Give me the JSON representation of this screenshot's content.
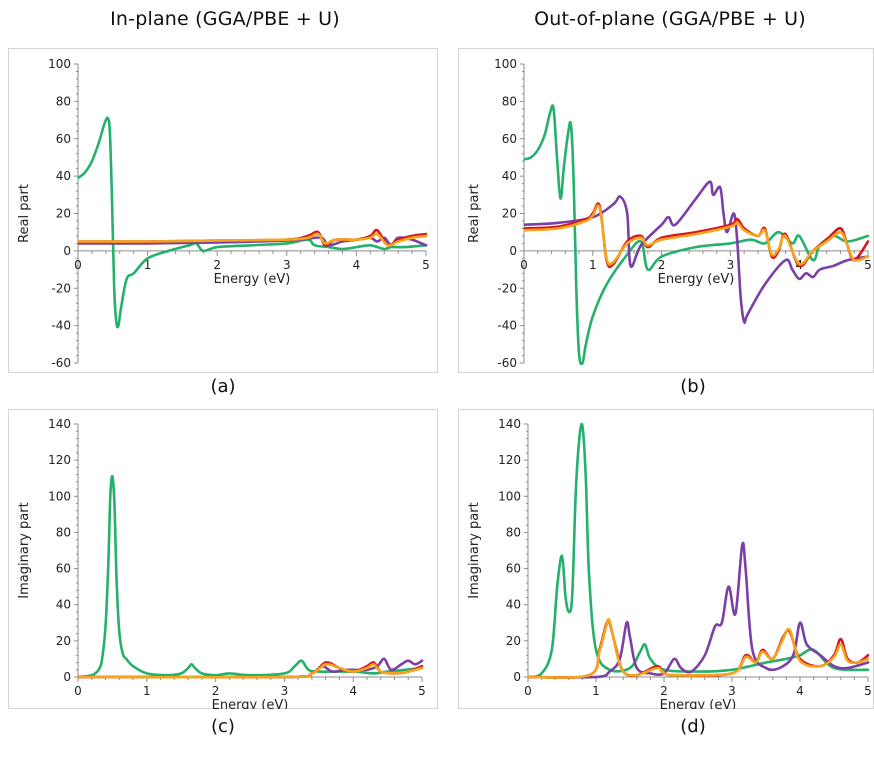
{
  "titles": {
    "left": "In-plane (GGA/PBE + U)",
    "right": "Out-of-plane (GGA/PBE + U)"
  },
  "colors": {
    "green": "#25b06b",
    "purple": "#7b3fa6",
    "red": "#d6161e",
    "orange": "#f4a51c"
  },
  "chart_data": [
    {
      "id": "a",
      "caption": "(a)",
      "type": "line",
      "xlabel": "Energy (eV)",
      "ylabel": "Real part",
      "xlim": [
        0,
        5
      ],
      "ylim": [
        -60,
        100
      ],
      "xticks": [
        "0",
        "1",
        "2",
        "3",
        "4",
        "5"
      ],
      "yticks": [
        "-60",
        "-40",
        "-20",
        "0",
        "20",
        "40",
        "60",
        "80",
        "100"
      ],
      "series": [
        {
          "color": "green",
          "x": [
            0,
            0.1,
            0.2,
            0.3,
            0.38,
            0.43,
            0.46,
            0.49,
            0.52,
            0.55,
            0.58,
            0.62,
            0.7,
            0.8,
            1.0,
            1.3,
            1.6,
            1.7,
            1.8,
            2.0,
            2.5,
            3.0,
            3.3,
            3.4,
            3.6,
            3.8,
            4.0,
            4.2,
            4.4,
            4.5,
            4.7,
            5.0
          ],
          "y": [
            39,
            42,
            48,
            58,
            68,
            71,
            62,
            25,
            -20,
            -38,
            -40,
            -30,
            -15,
            -12,
            -4,
            0,
            3,
            4,
            0,
            2,
            3,
            4,
            6,
            3,
            2,
            1,
            2,
            3,
            1,
            2,
            2,
            3
          ]
        },
        {
          "color": "purple",
          "x": [
            0,
            1,
            2,
            3,
            3.3,
            3.5,
            3.6,
            3.8,
            4.0,
            4.2,
            4.3,
            4.4,
            4.5,
            4.6,
            4.8,
            5.0
          ],
          "y": [
            4,
            4,
            4.5,
            5.5,
            6.5,
            7,
            3,
            5,
            6,
            7,
            5,
            7,
            3,
            7,
            6,
            3
          ]
        },
        {
          "color": "red",
          "x": [
            0,
            1,
            2,
            3,
            3.3,
            3.45,
            3.55,
            3.7,
            4.0,
            4.2,
            4.3,
            4.45,
            4.6,
            4.8,
            5.0
          ],
          "y": [
            5,
            5,
            5.5,
            6,
            8,
            10,
            3,
            6,
            6,
            8,
            11,
            3,
            6,
            8,
            9
          ]
        },
        {
          "color": "orange",
          "x": [
            0,
            1,
            2,
            3,
            3.3,
            3.45,
            3.55,
            3.7,
            4.0,
            4.2,
            4.3,
            4.45,
            4.6,
            4.8,
            5.0
          ],
          "y": [
            5,
            5,
            5.5,
            6,
            7,
            9,
            4,
            6,
            6,
            7,
            9,
            3,
            5,
            7,
            8
          ]
        }
      ]
    },
    {
      "id": "b",
      "caption": "(b)",
      "type": "line",
      "xlabel": "Energy (eV)",
      "ylabel": "Real part",
      "xlim": [
        0,
        5
      ],
      "ylim": [
        -60,
        100
      ],
      "xticks": [
        "0",
        "1",
        "2",
        "3",
        "4",
        "5"
      ],
      "yticks": [
        "-60",
        "-40",
        "-20",
        "0",
        "20",
        "40",
        "60",
        "80",
        "100"
      ],
      "series": [
        {
          "color": "green",
          "x": [
            0,
            0.1,
            0.2,
            0.3,
            0.38,
            0.43,
            0.48,
            0.53,
            0.58,
            0.63,
            0.68,
            0.72,
            0.76,
            0.8,
            0.85,
            0.9,
            1.0,
            1.2,
            1.5,
            1.7,
            1.8,
            2.0,
            2.5,
            3.0,
            3.3,
            3.5,
            3.7,
            3.9,
            4.0,
            4.2,
            4.3,
            4.5,
            4.7,
            5.0
          ],
          "y": [
            49,
            50,
            54,
            62,
            74,
            76,
            50,
            28,
            45,
            60,
            68,
            40,
            -20,
            -55,
            -60,
            -50,
            -35,
            -18,
            -2,
            5,
            -10,
            -3,
            2,
            4,
            6,
            4,
            10,
            4,
            8,
            -5,
            3,
            8,
            5,
            8
          ]
        },
        {
          "color": "purple",
          "x": [
            0,
            0.5,
            1.0,
            1.3,
            1.4,
            1.5,
            1.55,
            1.7,
            2.0,
            2.1,
            2.2,
            2.5,
            2.7,
            2.75,
            2.85,
            2.9,
            2.95,
            3.05,
            3.1,
            3.15,
            3.2,
            3.25,
            3.5,
            3.8,
            3.9,
            4.0,
            4.1,
            4.2,
            4.3,
            4.5,
            4.7,
            5.0
          ],
          "y": [
            14,
            15,
            18,
            25,
            29,
            20,
            -8,
            3,
            14,
            18,
            14,
            28,
            37,
            30,
            34,
            20,
            10,
            20,
            5,
            -25,
            -38,
            -34,
            -18,
            -5,
            -10,
            -15,
            -12,
            -14,
            -10,
            -8,
            -5,
            -3
          ]
        },
        {
          "color": "red",
          "x": [
            0,
            0.5,
            0.9,
            1.0,
            1.1,
            1.2,
            1.3,
            1.5,
            1.7,
            1.8,
            2.0,
            2.5,
            3.0,
            3.1,
            3.2,
            3.4,
            3.5,
            3.6,
            3.7,
            3.8,
            4.0,
            4.2,
            4.4,
            4.6,
            4.7,
            4.8,
            5.0
          ],
          "y": [
            12,
            13,
            17,
            20,
            24,
            -5,
            -7,
            5,
            8,
            2,
            7,
            10,
            14,
            17,
            12,
            8,
            12,
            -3,
            0,
            9,
            -8,
            0,
            6,
            12,
            3,
            -5,
            5
          ]
        },
        {
          "color": "orange",
          "x": [
            0,
            0.5,
            0.9,
            1.0,
            1.1,
            1.2,
            1.3,
            1.5,
            1.7,
            1.8,
            2.0,
            2.5,
            3.0,
            3.1,
            3.2,
            3.4,
            3.5,
            3.6,
            3.7,
            3.8,
            4.0,
            4.2,
            4.4,
            4.6,
            4.7,
            4.8,
            5.0
          ],
          "y": [
            11,
            12,
            16,
            19,
            23,
            -4,
            -6,
            4,
            7,
            3,
            6,
            9,
            13,
            15,
            11,
            8,
            11,
            -2,
            1,
            8,
            -7,
            0,
            5,
            10,
            3,
            -5,
            -3
          ]
        }
      ]
    },
    {
      "id": "c",
      "caption": "(c)",
      "type": "line",
      "xlabel": "Energy (eV)",
      "ylabel": "Imaginary part",
      "xlim": [
        0,
        5
      ],
      "ylim": [
        0,
        140
      ],
      "xticks": [
        "0",
        "1",
        "2",
        "3",
        "4",
        "5"
      ],
      "yticks": [
        "0",
        "20",
        "40",
        "60",
        "80",
        "100",
        "120",
        "140"
      ],
      "series": [
        {
          "color": "green",
          "x": [
            0,
            0.2,
            0.3,
            0.35,
            0.4,
            0.44,
            0.47,
            0.5,
            0.53,
            0.56,
            0.6,
            0.65,
            0.7,
            0.8,
            1.0,
            1.3,
            1.5,
            1.6,
            1.65,
            1.7,
            1.8,
            2.0,
            2.2,
            2.5,
            3.0,
            3.15,
            3.25,
            3.35,
            3.5,
            4.0,
            4.3,
            4.5,
            5.0
          ],
          "y": [
            0,
            1,
            4,
            10,
            28,
            62,
            100,
            111,
            95,
            55,
            25,
            13,
            10,
            6,
            2,
            1,
            2,
            5,
            7,
            5,
            2,
            1,
            2,
            1,
            2,
            6,
            9,
            4,
            3,
            3,
            2,
            3,
            5
          ]
        },
        {
          "color": "purple",
          "x": [
            0,
            3.0,
            3.4,
            3.55,
            3.7,
            3.9,
            4.2,
            4.35,
            4.45,
            4.55,
            4.7,
            4.8,
            4.9,
            5.0
          ],
          "y": [
            0,
            0,
            2,
            6,
            3,
            4,
            4,
            6,
            10,
            4,
            7,
            9,
            7,
            9
          ]
        },
        {
          "color": "red",
          "x": [
            0,
            3.0,
            3.4,
            3.6,
            3.8,
            4.0,
            4.2,
            4.3,
            4.4,
            4.6,
            4.8,
            5.0
          ],
          "y": [
            0,
            0,
            2,
            8,
            5,
            3,
            6,
            8,
            3,
            2,
            3,
            6
          ]
        },
        {
          "color": "orange",
          "x": [
            0,
            3.0,
            3.4,
            3.6,
            3.8,
            4.0,
            4.2,
            4.3,
            4.4,
            4.6,
            4.8,
            5.0
          ],
          "y": [
            0,
            0,
            2,
            7,
            5,
            3,
            5,
            7,
            3,
            2,
            3,
            5
          ]
        }
      ]
    },
    {
      "id": "d",
      "caption": "(d)",
      "type": "line",
      "xlabel": "Energy (eV)",
      "ylabel": "Imaginary part",
      "xlim": [
        0,
        5
      ],
      "ylim": [
        0,
        140
      ],
      "xticks": [
        "0",
        "1",
        "2",
        "3",
        "4",
        "5"
      ],
      "yticks": [
        "0",
        "20",
        "40",
        "60",
        "80",
        "100",
        "120",
        "140"
      ],
      "series": [
        {
          "color": "green",
          "x": [
            0,
            0.2,
            0.35,
            0.43,
            0.5,
            0.55,
            0.6,
            0.65,
            0.7,
            0.75,
            0.8,
            0.85,
            0.9,
            1.0,
            1.2,
            1.5,
            1.65,
            1.72,
            1.8,
            2.0,
            2.5,
            3.0,
            3.5,
            3.8,
            4.0,
            4.2,
            4.5,
            5.0
          ],
          "y": [
            0,
            2,
            15,
            50,
            67,
            45,
            36,
            45,
            100,
            130,
            139,
            110,
            55,
            15,
            4,
            5,
            14,
            18,
            10,
            4,
            3,
            4,
            8,
            10,
            12,
            15,
            5,
            4
          ]
        },
        {
          "color": "purple",
          "x": [
            0,
            1.0,
            1.2,
            1.35,
            1.45,
            1.5,
            1.6,
            1.8,
            2.0,
            2.15,
            2.25,
            2.4,
            2.6,
            2.75,
            2.85,
            2.95,
            3.05,
            3.15,
            3.2,
            3.3,
            3.5,
            3.7,
            3.9,
            4.0,
            4.1,
            4.3,
            4.5,
            4.7,
            5.0
          ],
          "y": [
            0,
            0,
            3,
            10,
            30,
            22,
            5,
            2,
            2,
            10,
            5,
            3,
            12,
            28,
            30,
            50,
            35,
            73,
            60,
            15,
            5,
            5,
            12,
            30,
            18,
            12,
            6,
            5,
            8
          ]
        },
        {
          "color": "red",
          "x": [
            0,
            0.9,
            1.05,
            1.15,
            1.2,
            1.3,
            1.4,
            1.6,
            1.9,
            2.0,
            2.2,
            3.0,
            3.2,
            3.35,
            3.45,
            3.6,
            3.75,
            3.85,
            4.0,
            4.3,
            4.5,
            4.6,
            4.7,
            4.85,
            5.0
          ],
          "y": [
            0,
            1,
            15,
            29,
            30,
            15,
            3,
            1,
            6,
            2,
            1,
            2,
            12,
            8,
            15,
            10,
            22,
            25,
            10,
            6,
            12,
            21,
            10,
            8,
            12
          ]
        },
        {
          "color": "orange",
          "x": [
            0,
            0.9,
            1.05,
            1.15,
            1.2,
            1.3,
            1.4,
            1.6,
            1.9,
            2.0,
            2.2,
            3.0,
            3.2,
            3.35,
            3.45,
            3.6,
            3.75,
            3.85,
            4.0,
            4.3,
            4.5,
            4.6,
            4.7,
            4.85,
            5.0
          ],
          "y": [
            0,
            1,
            14,
            28,
            31,
            14,
            3,
            1,
            5,
            2,
            1,
            2,
            11,
            8,
            14,
            10,
            21,
            26,
            9,
            6,
            11,
            18,
            9,
            8,
            10
          ]
        }
      ]
    }
  ]
}
